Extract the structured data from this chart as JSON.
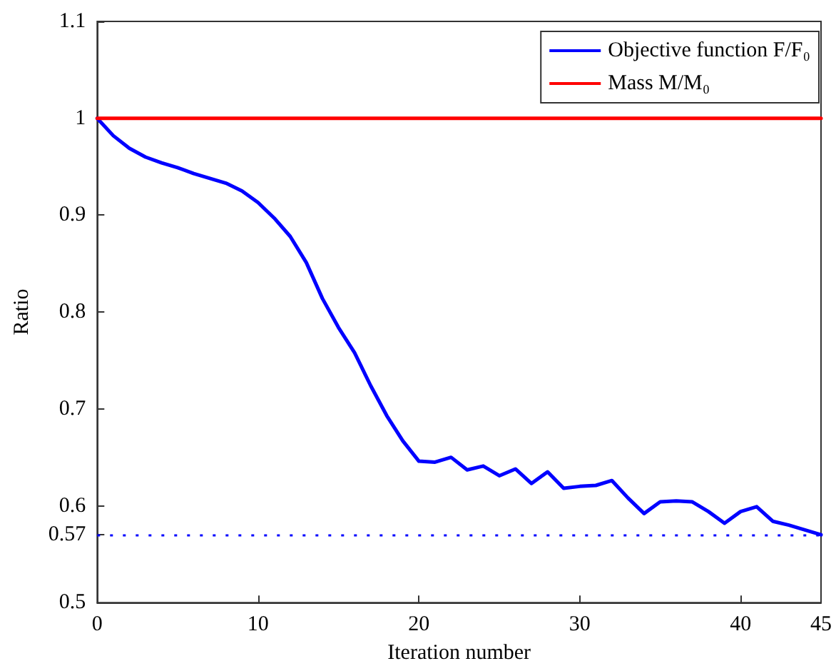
{
  "chart_data": {
    "type": "line",
    "xlabel": "Iteration number",
    "ylabel": "Ratio",
    "x": [
      0,
      1,
      2,
      3,
      4,
      5,
      6,
      7,
      8,
      9,
      10,
      11,
      12,
      13,
      14,
      15,
      16,
      17,
      18,
      19,
      20,
      21,
      22,
      23,
      24,
      25,
      26,
      27,
      28,
      29,
      30,
      31,
      32,
      33,
      34,
      35,
      36,
      37,
      38,
      39,
      40,
      41,
      42,
      43,
      44,
      45
    ],
    "series": [
      {
        "name": "Objective function F/F₀",
        "color": "#0000ff",
        "values": [
          1.0,
          0.982,
          0.969,
          0.96,
          0.954,
          0.949,
          0.943,
          0.938,
          0.933,
          0.925,
          0.913,
          0.897,
          0.878,
          0.851,
          0.814,
          0.784,
          0.758,
          0.724,
          0.693,
          0.667,
          0.646,
          0.645,
          0.65,
          0.637,
          0.641,
          0.631,
          0.638,
          0.623,
          0.635,
          0.618,
          0.62,
          0.621,
          0.626,
          0.608,
          0.592,
          0.604,
          0.605,
          0.604,
          0.594,
          0.582,
          0.594,
          0.599,
          0.584,
          0.58,
          0.575,
          0.57
        ]
      },
      {
        "name": "Mass M/M₀",
        "color": "#ff0000",
        "values": [
          1,
          1,
          1,
          1,
          1,
          1,
          1,
          1,
          1,
          1,
          1,
          1,
          1,
          1,
          1,
          1,
          1,
          1,
          1,
          1,
          1,
          1,
          1,
          1,
          1,
          1,
          1,
          1,
          1,
          1,
          1,
          1,
          1,
          1,
          1,
          1,
          1,
          1,
          1,
          1,
          1,
          1,
          1,
          1,
          1,
          1
        ]
      }
    ],
    "xlim": [
      0,
      45
    ],
    "xticks": [
      0,
      10,
      20,
      30,
      40,
      45
    ],
    "ylim": [
      0.5,
      1.1
    ],
    "yticks": [
      0.5,
      0.57,
      0.6,
      0.7,
      0.8,
      0.9,
      1,
      1.1
    ],
    "ref_lines": [
      {
        "axis": "y",
        "value": 0.57,
        "color": "#0000ff",
        "line_style": "dotted"
      }
    ],
    "grid": false,
    "legend": "top right",
    "marker": "none",
    "line_style": "solid"
  }
}
